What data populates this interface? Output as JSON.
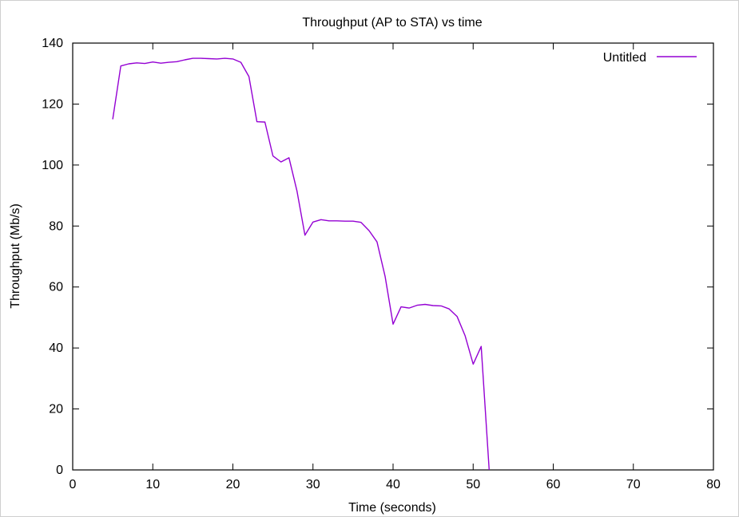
{
  "chart_data": {
    "type": "line",
    "title": "Throughput (AP to STA) vs time",
    "xlabel": "Time (seconds)",
    "ylabel": "Throughput (Mb/s)",
    "xlim": [
      0,
      80
    ],
    "ylim": [
      0,
      140
    ],
    "x_ticks": [
      0,
      10,
      20,
      30,
      40,
      50,
      60,
      70,
      80
    ],
    "y_ticks": [
      0,
      20,
      40,
      60,
      80,
      100,
      120,
      140
    ],
    "x_tick_labels": [
      "0",
      "10",
      "20",
      "30",
      "40",
      "50",
      "60",
      "70",
      "80"
    ],
    "y_tick_labels": [
      "0",
      "20",
      "40",
      "60",
      "80",
      "100",
      "120",
      "140"
    ],
    "grid": false,
    "legend_position": "top-right",
    "series": [
      {
        "name": "Untitled",
        "color": "#9400d3",
        "x": [
          5,
          6,
          7,
          8,
          9,
          10,
          11,
          12,
          13,
          14,
          15,
          16,
          17,
          18,
          19,
          20,
          21,
          22,
          23,
          24,
          25,
          26,
          27,
          28,
          29,
          30,
          31,
          32,
          33,
          34,
          35,
          36,
          37,
          38,
          39,
          40,
          41,
          42,
          43,
          44,
          45,
          46,
          47,
          48,
          49,
          50,
          51,
          52
        ],
        "y": [
          115,
          132.5,
          133.2,
          133.5,
          133.3,
          133.8,
          133.4,
          133.7,
          133.9,
          134.5,
          135,
          135,
          134.9,
          134.8,
          135,
          134.8,
          133.7,
          129,
          114.2,
          114.1,
          103,
          101,
          102.4,
          91.5,
          77,
          81.3,
          82.1,
          81.7,
          81.7,
          81.6,
          81.6,
          81.2,
          78.5,
          74.8,
          63.5,
          47.8,
          53.5,
          53.1,
          54,
          54.3,
          53.9,
          53.8,
          52.8,
          50.3,
          44,
          34.7,
          40.5,
          0
        ]
      }
    ]
  }
}
